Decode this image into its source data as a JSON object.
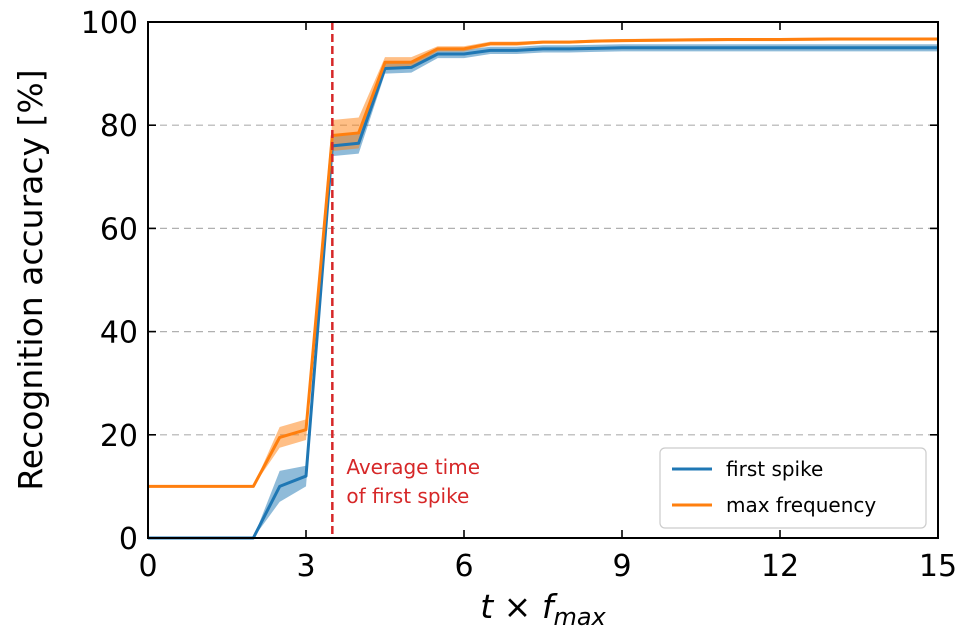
{
  "chart_data": {
    "type": "line",
    "xlabel": {
      "base": "t × f",
      "sub": "max"
    },
    "ylabel": "Recognition accuracy [%]",
    "xlim": [
      0,
      15
    ],
    "ylim": [
      0,
      100
    ],
    "xticks": [
      0,
      3,
      6,
      9,
      12,
      15
    ],
    "xtick_labels": [
      "0",
      "3",
      "6",
      "9",
      "12",
      "15"
    ],
    "yticks": [
      0,
      20,
      40,
      60,
      80,
      100
    ],
    "ytick_labels": [
      "0",
      "20",
      "40",
      "60",
      "80",
      "100"
    ],
    "grid": "horizontal dashed",
    "legend_position": "bottom-right",
    "series": [
      {
        "name": "first spike",
        "color": "#1f77b4",
        "x": [
          0,
          2,
          2.5,
          3,
          3.5,
          4,
          4.5,
          5,
          5.5,
          6,
          6.5,
          7,
          7.5,
          8,
          8.5,
          9,
          10,
          11,
          12,
          13,
          14,
          15
        ],
        "y": [
          0,
          0,
          10,
          12,
          76,
          76.5,
          91,
          91.2,
          93.8,
          93.8,
          94.5,
          94.5,
          94.8,
          94.8,
          94.9,
          95,
          95,
          95,
          95,
          95,
          95,
          95
        ],
        "band": [
          0,
          0,
          3,
          2,
          2,
          2,
          1,
          1,
          0.8,
          0.8,
          0.7,
          0.7,
          0.7,
          0.7,
          0.7,
          0.7,
          0.7,
          0.7,
          0.7,
          0.7,
          0.7,
          0.7
        ]
      },
      {
        "name": "max frequency",
        "color": "#ff7f0e",
        "x": [
          0,
          2,
          2.5,
          3,
          3.5,
          4,
          4.5,
          5,
          5.5,
          6,
          6.5,
          7,
          7.5,
          8,
          8.5,
          9,
          10,
          11,
          12,
          13,
          14,
          15
        ],
        "y": [
          10,
          10,
          19.5,
          21,
          78,
          78.5,
          92.2,
          92.2,
          94.8,
          94.8,
          95.8,
          95.8,
          96.1,
          96.1,
          96.3,
          96.4,
          96.5,
          96.6,
          96.6,
          96.7,
          96.7,
          96.7
        ],
        "band": [
          0,
          0,
          2,
          2,
          3,
          3,
          1,
          1,
          0.5,
          0.5,
          0.4,
          0.4,
          0.3,
          0.3,
          0.3,
          0.3,
          0.3,
          0.3,
          0.3,
          0.3,
          0.3,
          0.3
        ]
      }
    ],
    "vline": {
      "x": 3.5,
      "color": "#d62728",
      "label_lines": [
        "Average time",
        "of first spike"
      ]
    }
  }
}
